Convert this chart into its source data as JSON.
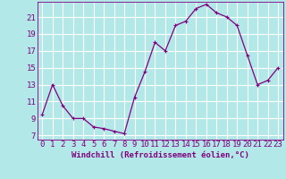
{
  "hours": [
    0,
    1,
    2,
    3,
    4,
    5,
    6,
    7,
    8,
    9,
    10,
    11,
    12,
    13,
    14,
    15,
    16,
    17,
    18,
    19,
    20,
    21,
    22,
    23
  ],
  "values": [
    9.5,
    13.0,
    10.5,
    9.0,
    9.0,
    8.0,
    7.8,
    7.5,
    7.2,
    11.5,
    14.5,
    18.0,
    17.0,
    20.0,
    20.5,
    22.0,
    22.5,
    21.5,
    21.0,
    20.0,
    16.5,
    13.0,
    13.5,
    15.0
  ],
  "line_color": "#800080",
  "marker": "+",
  "bg_color": "#b3e8e8",
  "grid_color": "#ffffff",
  "xlabel": "Windchill (Refroidissement éolien,°C)",
  "ylim": [
    6.5,
    22.8
  ],
  "xlim": [
    -0.5,
    23.5
  ],
  "yticks": [
    7,
    9,
    11,
    13,
    15,
    17,
    19,
    21
  ],
  "font_color": "#800080",
  "tick_fontsize": 6.5,
  "xlabel_fontsize": 6.5
}
